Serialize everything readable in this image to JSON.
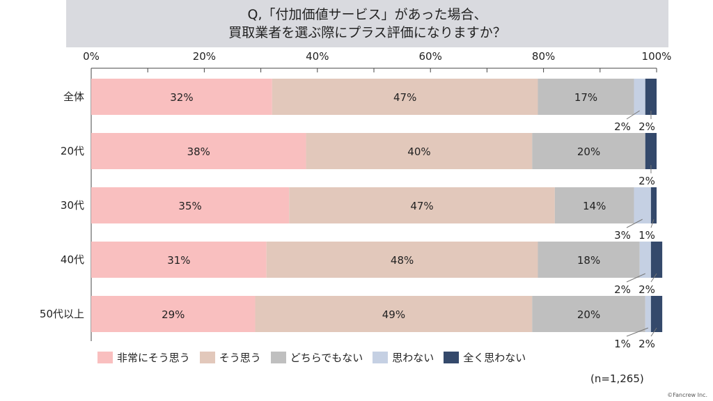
{
  "title": {
    "line1": "Q,「付加価値サービス」があった場合、",
    "line2": "買取業者を選ぶ際にプラス評価になりますか？"
  },
  "chart_data": {
    "type": "bar",
    "orientation": "horizontal-stacked-100",
    "xlim": [
      0,
      100
    ],
    "xticks": [
      "0%",
      "20%",
      "40%",
      "60%",
      "80%",
      "100%"
    ],
    "categories": [
      "全体",
      "20代",
      "30代",
      "40代",
      "50代以上"
    ],
    "series": [
      {
        "name": "非常にそう思う",
        "color": "#f9bfbf",
        "values": [
          32,
          38,
          35,
          31,
          29
        ]
      },
      {
        "name": "そう思う",
        "color": "#e2c8bb",
        "values": [
          47,
          40,
          47,
          48,
          49
        ]
      },
      {
        "name": "どちらでもない",
        "color": "#bfbfbf",
        "values": [
          17,
          20,
          14,
          18,
          20
        ]
      },
      {
        "name": "思わない",
        "color": "#c5d0e3",
        "values": [
          2,
          0,
          3,
          2,
          1
        ]
      },
      {
        "name": "全く思わない",
        "color": "#34496b",
        "values": [
          2,
          2,
          1,
          2,
          2
        ]
      }
    ],
    "legend": "bottom"
  },
  "note": "(n=1,265)",
  "credit": "©Fancrew Inc."
}
